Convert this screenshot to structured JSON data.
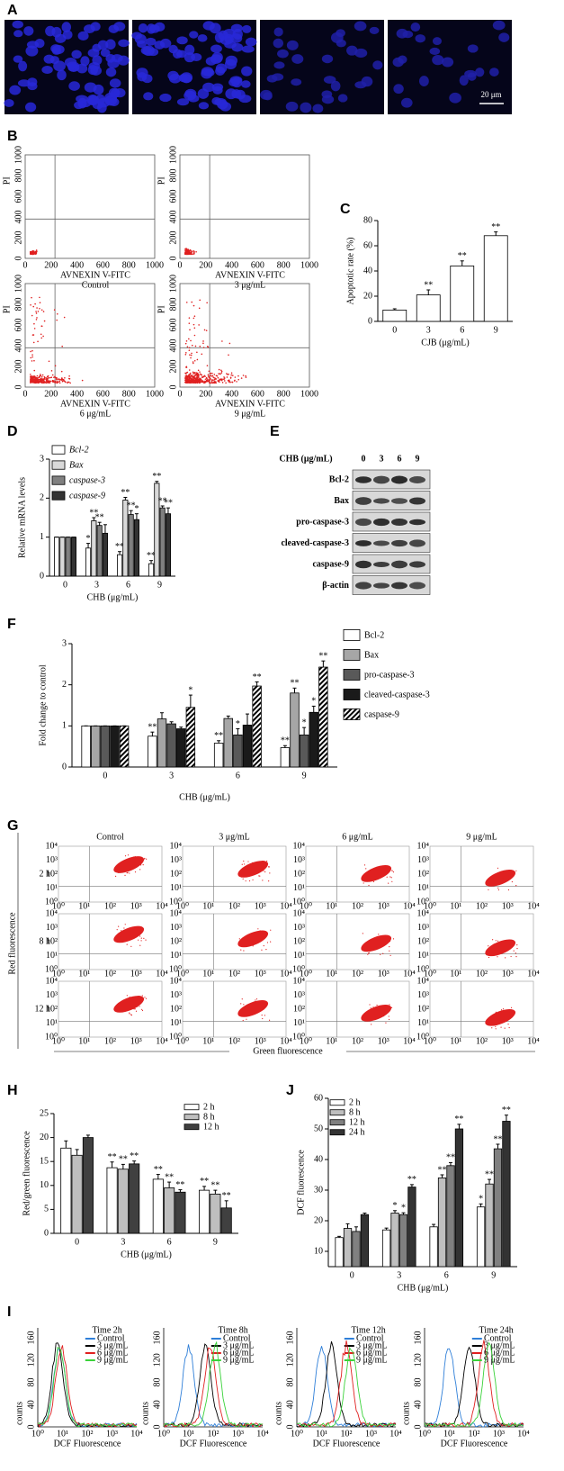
{
  "panel_labels": [
    "A",
    "B",
    "C",
    "D",
    "E",
    "F",
    "G",
    "H",
    "J",
    "I"
  ],
  "panel_a": {
    "scale_bar": "20 μm"
  },
  "panel_b": {
    "y_label": "PI",
    "x_label": "AVNEXIN V-FITC",
    "ticks": [
      0,
      200,
      400,
      600,
      800,
      1000
    ],
    "captions": [
      "Control",
      "3 μg/mL",
      "6 μg/mL",
      "9 μg/mL"
    ]
  },
  "panel_e": {
    "header": "CHB (μg/mL)",
    "lanes": [
      "0",
      "3",
      "6",
      "9"
    ],
    "rows": [
      "Bcl-2",
      "Bax",
      "pro-caspase-3",
      "cleaved-caspase-3",
      "caspase-9",
      "β-actin"
    ]
  },
  "panel_g": {
    "columns": [
      "Control",
      "3 μg/mL",
      "6  μg/mL",
      "9 μg/mL"
    ],
    "rows": [
      "2 h",
      "8 h",
      "12 h"
    ],
    "y_label": "Red fluorescence",
    "x_label": "Green fluorescence",
    "ticks": [
      "10⁰",
      "10¹",
      "10²",
      "10³",
      "10⁴"
    ]
  },
  "panel_i": {
    "titles": [
      "Time 2h",
      "Time 8h",
      "Time 12h",
      "Time 24h"
    ],
    "legend": [
      {
        "name": "Control",
        "color": "#2f7fd8"
      },
      {
        "name": "3 μg/mL",
        "color": "#000000"
      },
      {
        "name": "6 μg/mL",
        "color": "#e02020"
      },
      {
        "name": "9 μg/mL",
        "color": "#3ad23a"
      }
    ],
    "y_label": "counts",
    "x_label": "DCF Fluorescence",
    "yticks": [
      0,
      40,
      80,
      120,
      160
    ],
    "xticks": [
      "10⁰",
      "10¹",
      "10²",
      "10³",
      "10⁴"
    ]
  },
  "chart_data": [
    {
      "type": "bar",
      "categories": [
        "0",
        "3",
        "6",
        "9"
      ],
      "values": [
        9,
        21,
        44,
        68
      ],
      "errors": [
        1,
        4,
        4,
        3
      ],
      "significance": [
        null,
        "**",
        "**",
        "**"
      ],
      "color": "#ffffff",
      "ylim": [
        0,
        80
      ],
      "yticks": [
        0,
        20,
        40,
        60,
        80
      ],
      "x_label": "CJB (μg/mL)",
      "y_label": "Apoptotic rate (%)"
    },
    {
      "type": "bar",
      "categories": [
        "0",
        "3",
        "6",
        "9"
      ],
      "legend_style": "italic",
      "ylim": [
        0,
        3
      ],
      "yticks": [
        0,
        1,
        2,
        3
      ],
      "x_label": "CHB (μg/mL)",
      "y_label": "Relative mRNA levels",
      "series": [
        {
          "name": "Bcl-2",
          "color": "#ffffff",
          "values": [
            1,
            0.72,
            0.55,
            0.32
          ],
          "errors": [
            0,
            0.12,
            0.08,
            0.08
          ],
          "significance": [
            null,
            "*",
            "**",
            "**"
          ]
        },
        {
          "name": "Bax",
          "color": "#d9d9d9",
          "values": [
            1,
            1.42,
            1.95,
            2.38
          ],
          "errors": [
            0,
            0.08,
            0.07,
            0.05
          ],
          "significance": [
            null,
            "**",
            "**",
            "**"
          ]
        },
        {
          "name": "caspase-3",
          "color": "#808080",
          "values": [
            1,
            1.3,
            1.58,
            1.75
          ],
          "errors": [
            0,
            0.08,
            0.1,
            0.05
          ],
          "significance": [
            null,
            "**",
            "**",
            "**"
          ]
        },
        {
          "name": "caspase-9",
          "color": "#333333",
          "values": [
            1,
            1.1,
            1.45,
            1.6
          ],
          "errors": [
            0,
            0.22,
            0.15,
            0.15
          ],
          "significance": [
            null,
            null,
            "*",
            "**"
          ]
        }
      ]
    },
    {
      "type": "bar",
      "categories": [
        "0",
        "3",
        "6",
        "9"
      ],
      "ylim": [
        0,
        3
      ],
      "yticks": [
        0,
        1,
        2,
        3
      ],
      "x_label": "CHB (μg/mL)",
      "y_label": "Fold change to control",
      "series": [
        {
          "name": "Bcl-2",
          "color": "#ffffff",
          "values": [
            1,
            0.75,
            0.58,
            0.47
          ],
          "errors": [
            0,
            0.1,
            0.06,
            0.05
          ],
          "significance": [
            null,
            "**",
            "**",
            "**"
          ]
        },
        {
          "name": "Bax",
          "color": "#a6a6a6",
          "values": [
            1,
            1.17,
            1.18,
            1.8
          ],
          "errors": [
            0,
            0.15,
            0.06,
            0.12
          ],
          "significance": [
            null,
            null,
            null,
            "**"
          ]
        },
        {
          "name": "pro-caspase-3",
          "color": "#595959",
          "values": [
            1,
            1.05,
            0.78,
            0.78
          ],
          "errors": [
            0,
            0.05,
            0.15,
            0.18
          ],
          "significance": [
            null,
            null,
            "*",
            "*"
          ]
        },
        {
          "name": "cleaved-caspase-3",
          "color": "#1a1a1a",
          "values": [
            1,
            0.93,
            1.02,
            1.33
          ],
          "errors": [
            0,
            0.04,
            0.27,
            0.15
          ],
          "significance": [
            null,
            null,
            null,
            "*"
          ]
        },
        {
          "name": "caspase-9",
          "color": "#000000",
          "pattern": "hatch",
          "values": [
            1,
            1.45,
            1.97,
            2.43
          ],
          "errors": [
            0,
            0.3,
            0.1,
            0.15
          ],
          "significance": [
            null,
            "*",
            "**",
            "**"
          ]
        }
      ]
    },
    {
      "type": "bar",
      "categories": [
        "0",
        "3",
        "6",
        "9"
      ],
      "ylim": [
        0,
        25
      ],
      "yticks": [
        0,
        5,
        10,
        15,
        20,
        25
      ],
      "x_label": "CHB (μg/mL)",
      "y_label": "Red/green fluorescence",
      "series": [
        {
          "name": "2 h",
          "color": "#ffffff",
          "values": [
            17.8,
            13.7,
            11.3,
            9.0
          ],
          "errors": [
            1.5,
            1.2,
            1,
            0.8
          ],
          "significance": [
            null,
            "**",
            "**",
            "**"
          ]
        },
        {
          "name": "8 h",
          "color": "#bfbfbf",
          "values": [
            16.3,
            13.4,
            9.5,
            8.2
          ],
          "errors": [
            1.2,
            1,
            1.2,
            0.8
          ],
          "significance": [
            null,
            "**",
            "**",
            "**"
          ]
        },
        {
          "name": "12 h",
          "color": "#404040",
          "values": [
            20,
            14.5,
            8.6,
            5.3
          ],
          "errors": [
            0.5,
            0.6,
            0.5,
            1.5
          ],
          "significance": [
            null,
            "**",
            "**",
            "**"
          ]
        }
      ]
    },
    {
      "type": "bar",
      "categories": [
        "0",
        "3",
        "6",
        "9"
      ],
      "ylim": [
        5,
        60
      ],
      "yticks": [
        10,
        20,
        30,
        40,
        50,
        60
      ],
      "x_label": "CHB (μg/mL)",
      "y_label": "DCF fluorescence",
      "series": [
        {
          "name": "2 h",
          "color": "#ffffff",
          "values": [
            14.5,
            17,
            18,
            24.5
          ],
          "errors": [
            0.4,
            0.6,
            0.8,
            1
          ],
          "significance": [
            null,
            null,
            null,
            "*"
          ]
        },
        {
          "name": "8 h",
          "color": "#bfbfbf",
          "values": [
            17.5,
            22.5,
            34,
            32
          ],
          "errors": [
            1.5,
            0.8,
            1,
            1.5
          ],
          "significance": [
            null,
            "*",
            "**",
            "**"
          ]
        },
        {
          "name": "12 h",
          "color": "#808080",
          "values": [
            16.5,
            22,
            38,
            43.5
          ],
          "errors": [
            1.5,
            0.6,
            1,
            1.5
          ],
          "significance": [
            null,
            "*",
            "**",
            "**"
          ]
        },
        {
          "name": "24 h",
          "color": "#333333",
          "values": [
            22,
            31,
            50,
            52.5
          ],
          "errors": [
            0.5,
            0.8,
            1.5,
            2
          ],
          "significance": [
            null,
            "**",
            "**",
            "**"
          ]
        }
      ]
    }
  ]
}
